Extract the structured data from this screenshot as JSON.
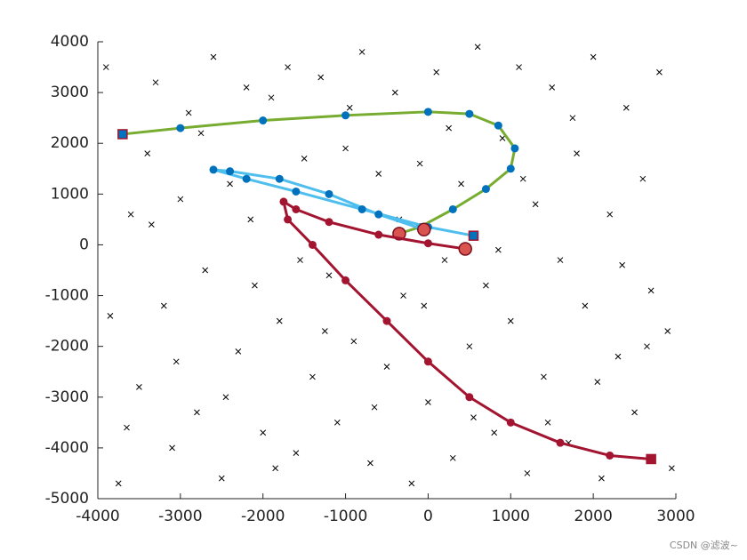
{
  "chart_data": {
    "type": "line",
    "xlim": [
      -4000,
      3000
    ],
    "xticks": [
      -4000,
      -3000,
      -2000,
      -1000,
      0,
      1000,
      2000,
      3000
    ],
    "ylim": [
      -5000,
      4000
    ],
    "yticks": [
      -5000,
      -4000,
      -3000,
      -2000,
      -1000,
      0,
      1000,
      2000,
      3000,
      4000
    ],
    "scatter": {
      "color": "#000000",
      "x": [
        -3900,
        -3750,
        -3600,
        -3500,
        -3400,
        -3300,
        -3200,
        -3100,
        -3000,
        -2900,
        -2800,
        -2700,
        -2600,
        -2500,
        -2400,
        -2300,
        -2200,
        -2100,
        -2000,
        -1900,
        -1800,
        -1700,
        -1600,
        -1500,
        -1400,
        -1300,
        -1200,
        -1100,
        -1000,
        -900,
        -800,
        -700,
        -600,
        -500,
        -400,
        -300,
        -200,
        -100,
        0,
        100,
        200,
        300,
        400,
        500,
        600,
        700,
        800,
        900,
        1000,
        1100,
        1200,
        1300,
        1400,
        1500,
        1600,
        1700,
        1800,
        1900,
        2000,
        2100,
        2200,
        2300,
        2400,
        2500,
        2600,
        2700,
        2800,
        2900,
        -3850,
        -3650,
        -3350,
        -3050,
        -2750,
        -2450,
        -2150,
        -1850,
        -1550,
        -1250,
        -950,
        -650,
        -350,
        -50,
        250,
        550,
        850,
        1150,
        1450,
        1750,
        2050,
        2350,
        2650,
        2950
      ],
      "y": [
        3500,
        -4700,
        600,
        -2800,
        1800,
        3200,
        -1200,
        -4000,
        900,
        2600,
        -3300,
        -500,
        3700,
        -4600,
        1200,
        -2100,
        3100,
        -800,
        -3700,
        2900,
        -1500,
        3500,
        -4100,
        1700,
        -2600,
        3300,
        -600,
        -3500,
        1900,
        -1900,
        3800,
        -4300,
        1400,
        -2400,
        3000,
        -1000,
        -4700,
        1600,
        -3100,
        3400,
        -300,
        -4200,
        1200,
        -2000,
        3900,
        -800,
        -3700,
        2100,
        -1500,
        3500,
        -4500,
        800,
        -2600,
        3100,
        -300,
        -3900,
        1800,
        -1200,
        3700,
        -4600,
        600,
        -2200,
        2700,
        -3300,
        1300,
        -900,
        3400,
        -1700,
        -1400,
        -3600,
        400,
        -2300,
        2200,
        -3000,
        500,
        -4400,
        -300,
        -1700,
        2700,
        -3200,
        500,
        -1200,
        2300,
        -3400,
        -100,
        1300,
        -3500,
        2500,
        -2700,
        -400,
        -2000,
        -4400
      ]
    },
    "series": [
      {
        "color": "#77ac30",
        "marker_color": "#0072bd",
        "x": [
          -3700,
          -3000,
          -2000,
          -1000,
          0,
          500,
          850,
          1050,
          1000,
          700,
          300,
          -100,
          -350
        ],
        "y": [
          2180,
          2300,
          2450,
          2550,
          2620,
          2580,
          2350,
          1900,
          1500,
          1100,
          700,
          350,
          220
        ]
      },
      {
        "color": "#4dbeee",
        "marker_color": "#0072bd",
        "x": [
          550,
          0,
          -800,
          -1600,
          -2200,
          -2600,
          -2400,
          -1800,
          -1200,
          -600,
          -50
        ],
        "y": [
          180,
          350,
          700,
          1050,
          1300,
          1480,
          1450,
          1300,
          1000,
          600,
          300
        ]
      },
      {
        "color": "#a2142f",
        "marker_color": "#a2142f",
        "x": [
          2700,
          2200,
          1600,
          1000,
          500,
          0,
          -500,
          -1000,
          -1400,
          -1700,
          -1750,
          -1600,
          -1200,
          -600,
          0,
          450
        ],
        "y": [
          -4220,
          -4150,
          -3900,
          -3500,
          -3000,
          -2300,
          -1500,
          -700,
          0,
          500,
          850,
          700,
          450,
          200,
          30,
          -80
        ]
      }
    ],
    "watermark": "CSDN @滤波~"
  }
}
